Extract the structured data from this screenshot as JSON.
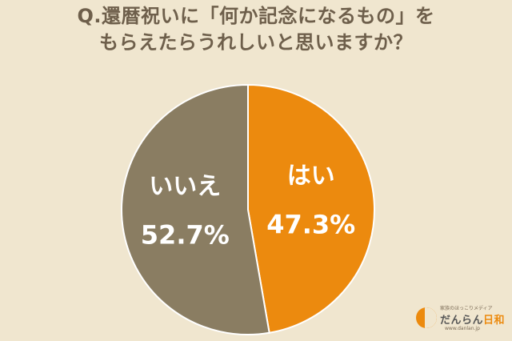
{
  "title": {
    "line1": "Q.還暦祝いに「何か記念になるもの」を",
    "line2": "もらえたらうれしいと思いますか？"
  },
  "chart_data": {
    "type": "pie",
    "title": "Q.還暦祝いに「何か記念になるもの」をもらえたらうれしいと思いますか？",
    "slices": [
      {
        "label": "はい",
        "value": 47.3,
        "display": "47.3%",
        "color": "#ec8a0e"
      },
      {
        "label": "いいえ",
        "value": 52.7,
        "display": "52.7%",
        "color": "#8a7d62"
      }
    ],
    "start": "12 o'clock",
    "direction": "clockwise",
    "legend": "none",
    "label_color": "#ffffff",
    "border_color": "#ffffff"
  },
  "logo": {
    "tagline": "家族のほっこりメディア",
    "name_part1": "だんらん",
    "name_part2": "日和",
    "url": "www.danlan.jp",
    "accent_color": "#ec8a0e"
  }
}
